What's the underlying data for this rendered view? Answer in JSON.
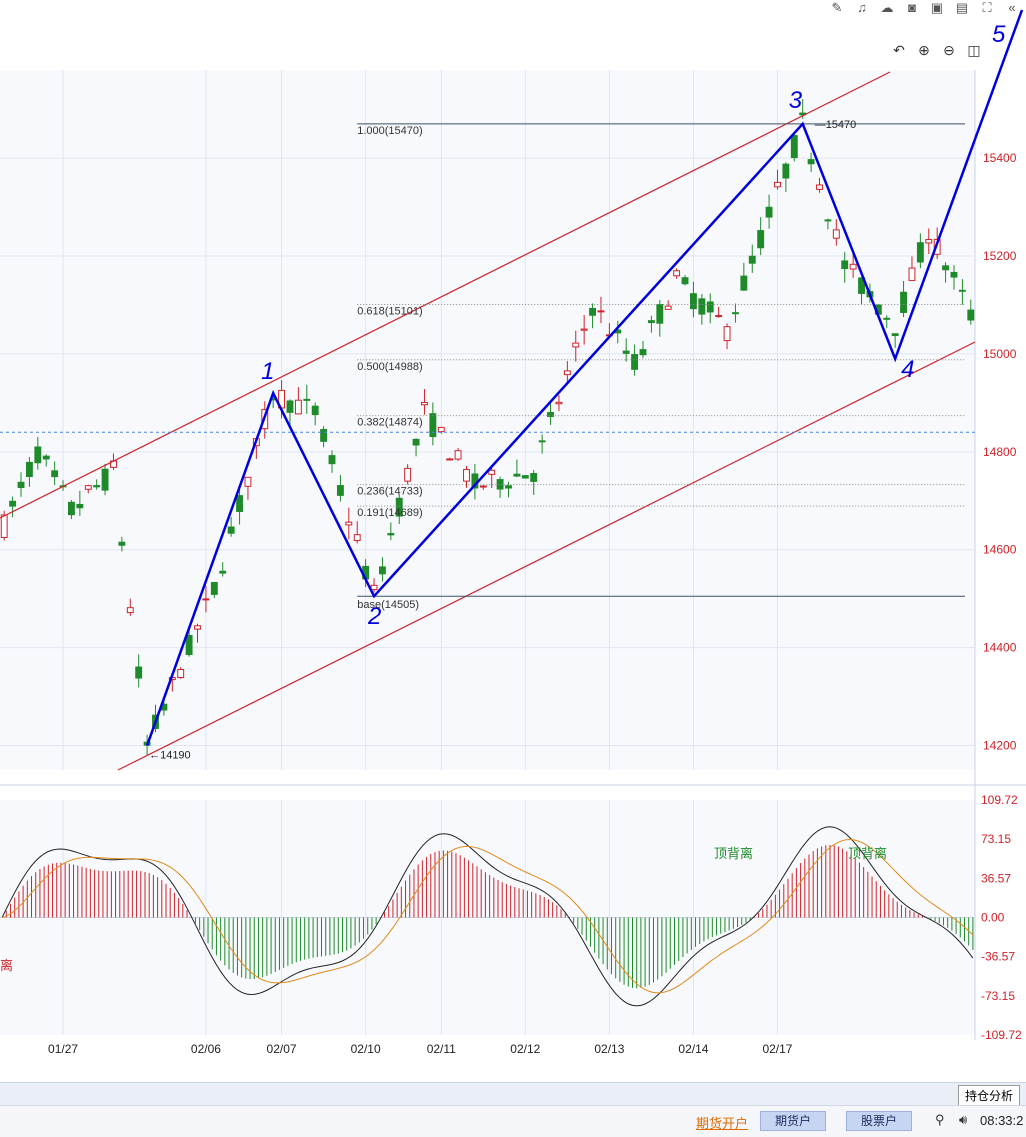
{
  "toolbar_icons": [
    "pencil-icon",
    "bell-icon",
    "cloud-icon",
    "camera-icon",
    "save-icon",
    "window-icon",
    "expand-icon",
    "collapse-icon"
  ],
  "chart_toolbar_icons": [
    "undo-icon",
    "zoom-in-icon",
    "zoom-out-icon",
    "layout-icon",
    "settings-icon"
  ],
  "colors": {
    "up": "#d0222a",
    "down": "#1f8a2a",
    "annot": "#0000dd",
    "channel": "#d0222a",
    "dif": "#222222",
    "dea": "#e08a1a",
    "grid": "#dfe6f2",
    "axis_text": "#d0222a"
  },
  "chart_data": [
    {
      "type": "candlestick",
      "price_axis": {
        "ticks": [
          15400,
          15200,
          15000,
          14800,
          14600,
          14400,
          14200
        ],
        "range": [
          14150,
          15580
        ]
      },
      "x_ticks": [
        "01/27",
        "02/06",
        "02/07",
        "02/10",
        "02/11",
        "02/12",
        "02/13",
        "02/14",
        "02/17"
      ],
      "high_marker": "15470",
      "low_marker": "14190",
      "fib_levels": [
        {
          "label": "1.000(15470)",
          "value": 15470
        },
        {
          "label": "0.618(15101)",
          "value": 15101
        },
        {
          "label": "0.500(14988)",
          "value": 14988
        },
        {
          "label": "0.382(14874)",
          "value": 14874
        },
        {
          "label": "0.236(14733)",
          "value": 14733
        },
        {
          "label": "0.191(14689)",
          "value": 14689
        },
        {
          "label": "base(14505)",
          "value": 14505
        }
      ],
      "current_price_line": 14840,
      "wave_labels": [
        "1",
        "2",
        "3",
        "4",
        "5"
      ],
      "wave_points": [
        {
          "label": "",
          "date_index": 17,
          "price": 14200
        },
        {
          "label": "1",
          "date_index": 32,
          "price": 14920
        },
        {
          "label": "2",
          "date_index": 44,
          "price": 14505
        },
        {
          "label": "3",
          "date_index": 95,
          "price": 15470
        },
        {
          "label": "4",
          "date_index": 106,
          "price": 14990
        },
        {
          "label": "5",
          "date_index": 112,
          "price": 15580
        }
      ]
    },
    {
      "type": "macd",
      "ticks": [
        109.72,
        73.15,
        36.57,
        0.0,
        -36.57,
        -73.15,
        -109.72
      ],
      "tick_labels": [
        "109.72",
        "73.15",
        "36.57",
        "0.00",
        "-36.57",
        "-73.15",
        "-109.72"
      ],
      "annotations": [
        "顶背离",
        "顶背离",
        "离"
      ]
    }
  ],
  "bottom": {
    "hold_analysis": "持仓分析",
    "open_account": "期货开户",
    "futures_account": "期货户",
    "stock_account": "股票户",
    "clock": "08:33:2"
  }
}
